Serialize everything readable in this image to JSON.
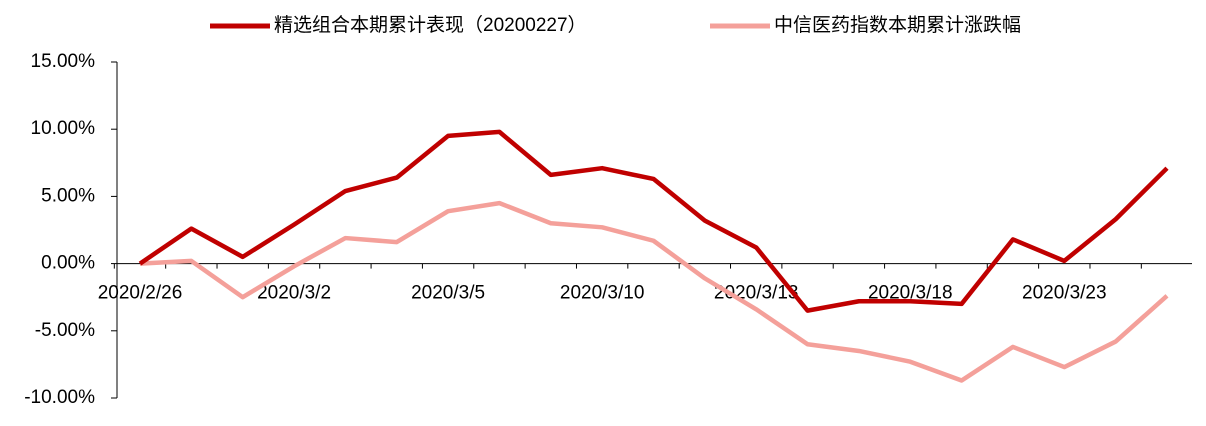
{
  "chart_data": {
    "type": "line",
    "categories": [
      "2020/2/26",
      null,
      null,
      "2020/3/2",
      null,
      null,
      "2020/3/5",
      null,
      null,
      "2020/3/10",
      null,
      null,
      "2020/3/13",
      null,
      null,
      "2020/3/18",
      null,
      null,
      "2020/3/23",
      null,
      null
    ],
    "series": [
      {
        "name": "精选组合本期累计表现（20200227）",
        "color": "#c00000",
        "values": [
          0,
          2.6,
          0.5,
          2.9,
          5.4,
          6.4,
          9.5,
          9.8,
          6.6,
          7.1,
          6.3,
          3.2,
          1.2,
          -3.5,
          -2.8,
          -2.8,
          -3.0,
          1.8,
          0.2,
          3.3,
          7.1
        ]
      },
      {
        "name": "中信医药指数本期累计涨跌幅",
        "color": "#f4a09a",
        "values": [
          0,
          0.2,
          -2.5,
          -0.2,
          1.9,
          1.6,
          3.9,
          4.5,
          3.0,
          2.7,
          1.7,
          -1.1,
          -3.4,
          -6.0,
          -6.5,
          -7.3,
          -8.7,
          -6.2,
          -7.7,
          -5.8,
          -2.4
        ]
      }
    ],
    "ylim": [
      -10,
      15
    ],
    "yticks": [
      {
        "value": -10,
        "label": "-10.00%"
      },
      {
        "value": -5,
        "label": "-5.00%"
      },
      {
        "value": 0,
        "label": "0.00%"
      },
      {
        "value": 5,
        "label": "5.00%"
      },
      {
        "value": 10,
        "label": "10.00%"
      },
      {
        "value": 15,
        "label": "15.00%"
      }
    ],
    "legend": "top"
  }
}
